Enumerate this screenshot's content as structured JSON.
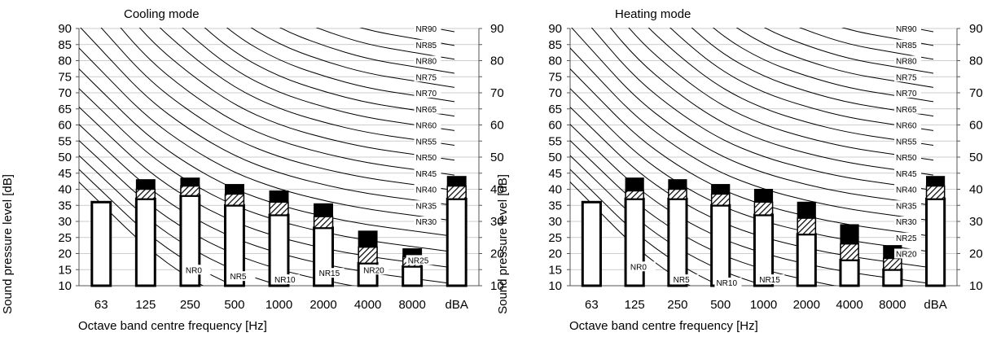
{
  "chart_data": [
    {
      "type": "bar",
      "title": "Cooling mode",
      "xlabel": "Octave band centre frequency [Hz]",
      "ylabel": "Sound pressure level [dB]",
      "ylim": [
        10,
        90
      ],
      "yticks": [
        "10",
        "15",
        "20",
        "25",
        "30",
        "35",
        "40",
        "45",
        "50",
        "55",
        "60",
        "65",
        "70",
        "75",
        "80",
        "85",
        "90"
      ],
      "categories": [
        "63",
        "125",
        "250",
        "500",
        "1000",
        "2000",
        "4000",
        "8000",
        "dBA"
      ],
      "series": [
        {
          "values": [
            36,
            37,
            38,
            35,
            32,
            28,
            17,
            16,
            37
          ]
        },
        {
          "values": [
            0,
            3,
            3,
            3.5,
            4,
            3.5,
            5,
            3,
            4
          ]
        },
        {
          "values": [
            0,
            3,
            2.5,
            3,
            3.5,
            4,
            5,
            2.5,
            3
          ]
        }
      ],
      "nr_curves": {
        "labels": [
          "NR90",
          "NR85",
          "NR80",
          "NR75",
          "NR70",
          "NR65",
          "NR60",
          "NR55",
          "NR50",
          "NR45",
          "NR40",
          "NR35",
          "NR30",
          "NR25",
          "NR20",
          "NR15",
          "NR10",
          "NR5",
          "NR0"
        ],
        "label_positions": [
          [
            0,
            90
          ],
          [
            0,
            85
          ],
          [
            0,
            80
          ],
          [
            0,
            75
          ],
          [
            0,
            70
          ],
          [
            0,
            65
          ],
          [
            0,
            60
          ],
          [
            0,
            55
          ],
          [
            0,
            50
          ],
          [
            0,
            45
          ],
          [
            0,
            40
          ],
          [
            0,
            35
          ],
          [
            0,
            30
          ],
          [
            7,
            18
          ],
          [
            6,
            15
          ],
          [
            5,
            14
          ],
          [
            4,
            12
          ],
          [
            3,
            13
          ],
          [
            2,
            15
          ]
        ]
      },
      "grid": true,
      "legend": "none"
    },
    {
      "type": "bar",
      "title": "Heating mode",
      "xlabel": "Octave band centre frequency [Hz]",
      "ylabel": "Sound pressure level [dB]",
      "ylim": [
        10,
        90
      ],
      "yticks": [
        "10",
        "15",
        "20",
        "25",
        "30",
        "35",
        "40",
        "45",
        "50",
        "55",
        "60",
        "65",
        "70",
        "75",
        "80",
        "85",
        "90"
      ],
      "categories": [
        "63",
        "125",
        "250",
        "500",
        "1000",
        "2000",
        "4000",
        "8000",
        "dBA"
      ],
      "series": [
        {
          "values": [
            36,
            37,
            37,
            35,
            32,
            26,
            18,
            15,
            37
          ]
        },
        {
          "values": [
            0,
            2.5,
            3,
            3.5,
            4,
            5,
            5,
            3.5,
            4
          ]
        },
        {
          "values": [
            0,
            4,
            3,
            3,
            4,
            5,
            6,
            4,
            3
          ]
        }
      ],
      "nr_curves": {
        "labels": [
          "NR90",
          "NR85",
          "NR80",
          "NR75",
          "NR70",
          "NR65",
          "NR60",
          "NR55",
          "NR50",
          "NR45",
          "NR40",
          "NR35",
          "NR30",
          "NR25",
          "NR20",
          "NR15",
          "NR10",
          "NR5",
          "NR0"
        ],
        "label_positions": [
          [
            0,
            90
          ],
          [
            0,
            85
          ],
          [
            0,
            80
          ],
          [
            0,
            75
          ],
          [
            0,
            70
          ],
          [
            0,
            65
          ],
          [
            0,
            60
          ],
          [
            0,
            55
          ],
          [
            0,
            50
          ],
          [
            0,
            45
          ],
          [
            0,
            40
          ],
          [
            0,
            35
          ],
          [
            0,
            30
          ],
          [
            0,
            25
          ],
          [
            0,
            20
          ],
          [
            4,
            12
          ],
          [
            3,
            11
          ],
          [
            2,
            12
          ],
          [
            1,
            16
          ]
        ]
      },
      "grid": true,
      "legend": "none"
    }
  ]
}
